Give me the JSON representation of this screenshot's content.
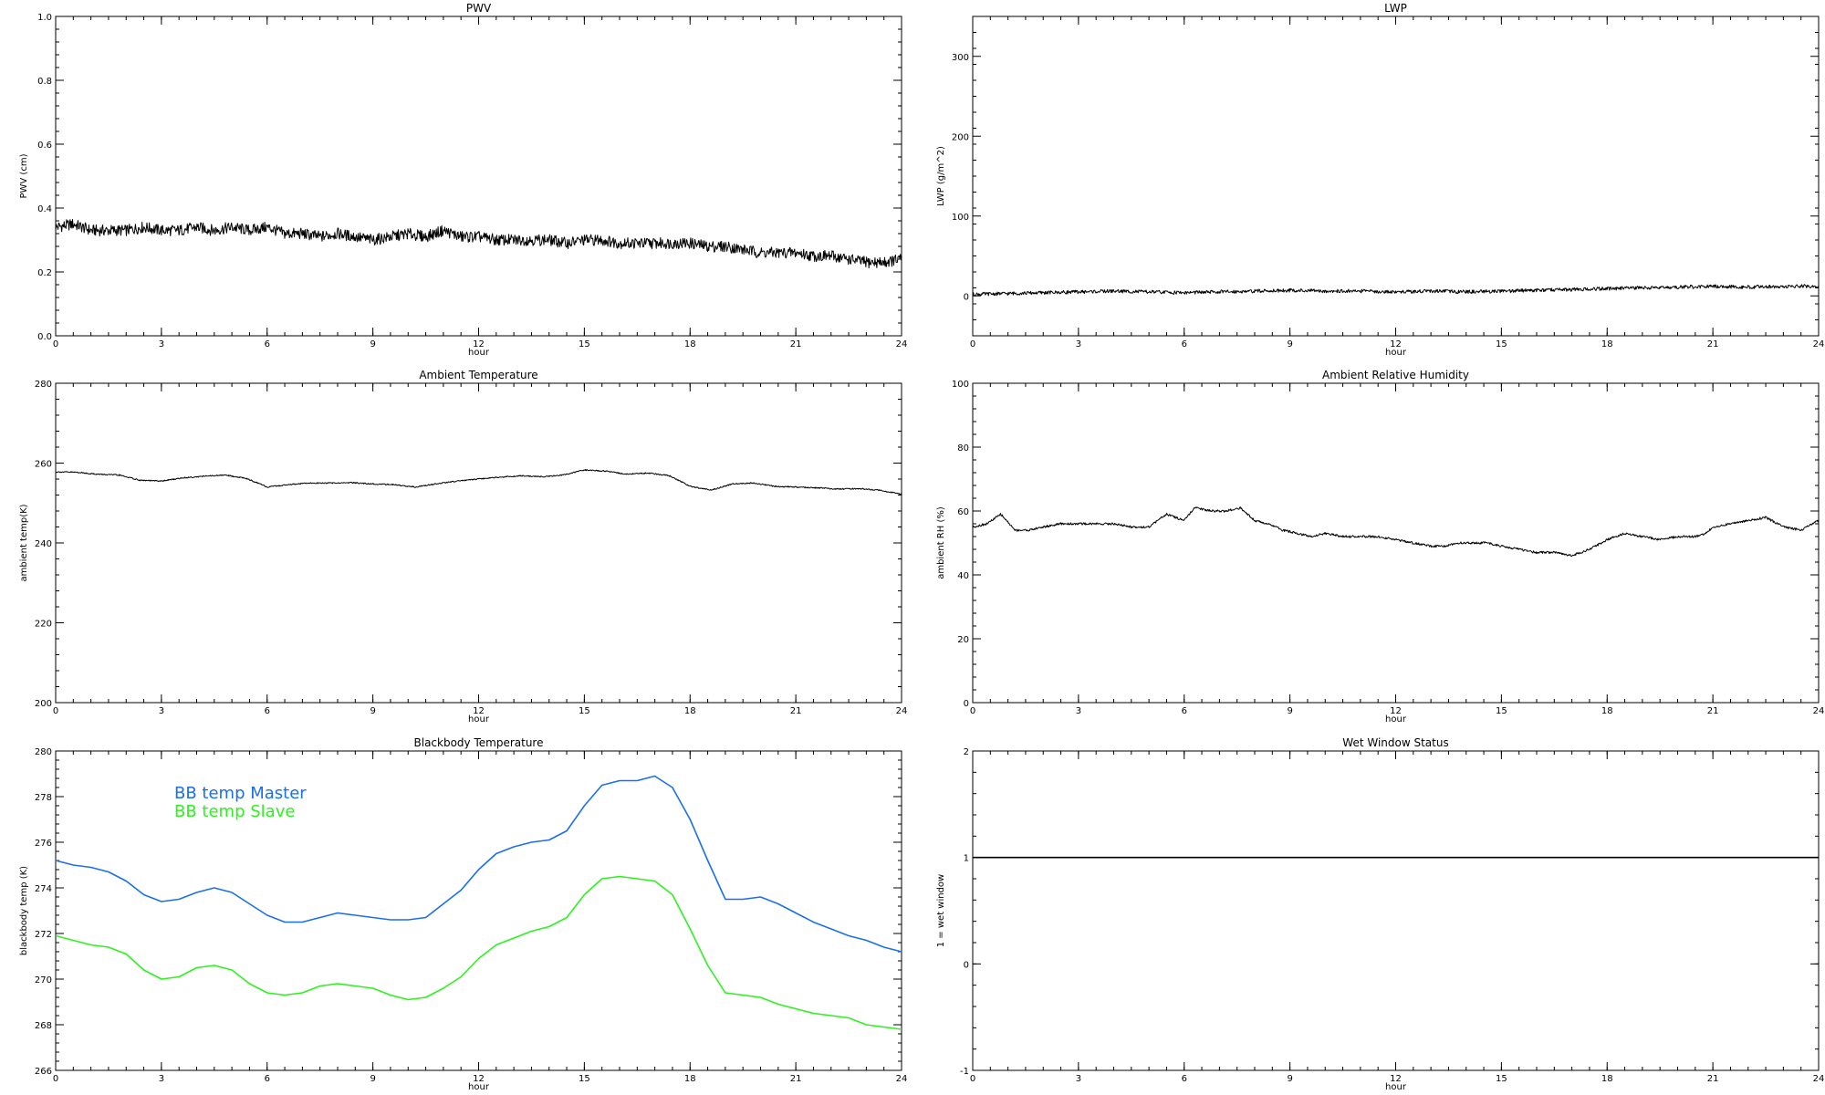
{
  "chart_data": [
    {
      "type": "line",
      "title": "PWV",
      "xlabel": "hour",
      "ylabel": "PWV (cm)",
      "xlim": [
        0,
        24
      ],
      "ylim": [
        0,
        1.0
      ],
      "xticks": [
        "0",
        "3",
        "6",
        "9",
        "12",
        "15",
        "18",
        "21",
        "24"
      ],
      "yticks": [
        "0.0",
        "0.2",
        "0.4",
        "0.6",
        "0.8",
        "1.0"
      ],
      "noise": 0.018,
      "series": [
        {
          "color": "#000000",
          "x": [
            0,
            0.5,
            1,
            1.5,
            2,
            2.5,
            3,
            3.5,
            4,
            4.5,
            5,
            5.5,
            6,
            6.5,
            7,
            7.5,
            8,
            8.5,
            9,
            9.5,
            10,
            10.5,
            11,
            11.5,
            12,
            12.5,
            13,
            13.5,
            14,
            14.5,
            15,
            15.5,
            16,
            16.5,
            17,
            17.5,
            18,
            18.5,
            19,
            19.5,
            20,
            20.5,
            21,
            21.5,
            22,
            22.5,
            23,
            23.5,
            24
          ],
          "y": [
            0.34,
            0.35,
            0.33,
            0.33,
            0.33,
            0.34,
            0.33,
            0.33,
            0.34,
            0.33,
            0.34,
            0.33,
            0.34,
            0.32,
            0.32,
            0.31,
            0.32,
            0.31,
            0.3,
            0.31,
            0.32,
            0.31,
            0.33,
            0.31,
            0.31,
            0.3,
            0.3,
            0.3,
            0.3,
            0.29,
            0.3,
            0.3,
            0.29,
            0.29,
            0.29,
            0.29,
            0.29,
            0.28,
            0.28,
            0.27,
            0.26,
            0.26,
            0.26,
            0.25,
            0.25,
            0.24,
            0.23,
            0.23,
            0.24
          ]
        }
      ]
    },
    {
      "type": "line",
      "title": "LWP",
      "xlabel": "hour",
      "ylabel": "LWP (g/m^2)",
      "xlim": [
        0,
        24
      ],
      "ylim": [
        -50,
        350
      ],
      "xticks": [
        "0",
        "3",
        "6",
        "9",
        "12",
        "15",
        "18",
        "21",
        "24"
      ],
      "yticks": [
        "0",
        "100",
        "200",
        "300"
      ],
      "ytick_values": [
        0,
        100,
        200,
        300
      ],
      "noise": 2.2,
      "series": [
        {
          "color": "#000000",
          "x": [
            0,
            1,
            2,
            3,
            4,
            5,
            6,
            7,
            8,
            9,
            10,
            11,
            12,
            13,
            14,
            15,
            16,
            17,
            18,
            19,
            20,
            21,
            22,
            23,
            24
          ],
          "y": [
            2,
            3,
            4,
            5,
            6,
            5,
            4,
            5,
            6,
            7,
            6,
            6,
            5,
            6,
            5,
            6,
            7,
            8,
            9,
            10,
            11,
            12,
            11,
            12,
            12
          ]
        }
      ]
    },
    {
      "type": "line",
      "title": "Ambient Temperature",
      "xlabel": "hour",
      "ylabel": "ambient temp(K)",
      "xlim": [
        0,
        24
      ],
      "ylim": [
        200,
        280
      ],
      "xticks": [
        "0",
        "3",
        "6",
        "9",
        "12",
        "15",
        "18",
        "21",
        "24"
      ],
      "yticks": [
        "200",
        "220",
        "240",
        "260",
        "280"
      ],
      "ytick_values": [
        200,
        220,
        240,
        260,
        280
      ],
      "noise": 0.15,
      "series": [
        {
          "color": "#000000",
          "x": [
            0,
            0.6,
            1.2,
            1.8,
            2.4,
            3,
            3.6,
            4.2,
            4.8,
            5.4,
            6,
            6.6,
            7.2,
            7.8,
            8.4,
            9,
            9.6,
            10.2,
            10.8,
            11.4,
            12,
            12.6,
            13.2,
            13.8,
            14.4,
            15,
            15.6,
            16.2,
            16.8,
            17.4,
            18,
            18.6,
            19.2,
            19.8,
            20.4,
            21,
            21.6,
            22.2,
            22.8,
            23.4,
            24
          ],
          "y": [
            257.8,
            257.7,
            257.2,
            257.0,
            255.7,
            255.5,
            256.3,
            256.7,
            257.0,
            256.2,
            254.0,
            254.6,
            255.0,
            255.0,
            255.1,
            254.8,
            254.6,
            254.0,
            254.8,
            255.5,
            256.0,
            256.5,
            256.8,
            256.6,
            257.0,
            258.3,
            258.0,
            257.2,
            257.5,
            256.9,
            254.2,
            253.2,
            254.8,
            255.0,
            254.2,
            254.0,
            253.8,
            253.5,
            253.6,
            253.2,
            252.2
          ]
        }
      ]
    },
    {
      "type": "line",
      "title": "Ambient Relative Humidity",
      "xlabel": "hour",
      "ylabel": "ambient RH (%)",
      "xlim": [
        0,
        24
      ],
      "ylim": [
        0,
        100
      ],
      "xticks": [
        "0",
        "3",
        "6",
        "9",
        "12",
        "15",
        "18",
        "21",
        "24"
      ],
      "yticks": [
        "0",
        "20",
        "40",
        "60",
        "80",
        "100"
      ],
      "ytick_values": [
        0,
        20,
        40,
        60,
        80,
        100
      ],
      "noise": 0.35,
      "series": [
        {
          "color": "#000000",
          "x": [
            0,
            0.4,
            0.8,
            1.2,
            1.6,
            2,
            2.5,
            3,
            3.5,
            4,
            4.5,
            5,
            5.5,
            6,
            6.3,
            6.8,
            7.2,
            7.6,
            8,
            8.4,
            8.8,
            9.2,
            9.6,
            10,
            10.5,
            11,
            11.5,
            12,
            12.5,
            13,
            13.4,
            13.8,
            14.2,
            14.6,
            15,
            15.5,
            16,
            16.5,
            17,
            17.5,
            18,
            18.5,
            19,
            19.5,
            20,
            20.5,
            20.8,
            21,
            21.5,
            22,
            22.5,
            23,
            23.5,
            24
          ],
          "y": [
            55,
            56,
            59,
            54,
            54,
            55,
            56,
            56,
            56,
            56,
            55,
            55,
            59,
            57,
            61,
            60,
            60,
            61,
            57,
            56,
            54,
            53,
            52,
            53,
            52,
            52,
            52,
            51,
            50,
            49,
            49,
            50,
            50,
            50,
            49,
            48,
            47,
            47,
            46,
            48,
            51,
            53,
            52,
            51,
            52,
            52,
            53,
            55,
            56,
            57,
            58,
            55,
            54,
            57
          ]
        }
      ]
    },
    {
      "type": "line",
      "title": "Blackbody Temperature",
      "xlabel": "hour",
      "ylabel": "blackbody temp (K)",
      "xlim": [
        0,
        24
      ],
      "ylim": [
        266,
        280
      ],
      "xticks": [
        "0",
        "3",
        "6",
        "9",
        "12",
        "15",
        "18",
        "21",
        "24"
      ],
      "yticks": [
        "266",
        "268",
        "270",
        "272",
        "274",
        "276",
        "278",
        "280"
      ],
      "ytick_values": [
        266,
        268,
        270,
        272,
        274,
        276,
        278,
        280
      ],
      "noise": 0,
      "legend_position": "top-left",
      "series": [
        {
          "name": "BB temp Master",
          "color": "#1a6ff0",
          "x": [
            0,
            0.5,
            1,
            1.5,
            2,
            2.5,
            3,
            3.5,
            4,
            4.5,
            5,
            5.5,
            6,
            6.5,
            7,
            7.5,
            8,
            8.5,
            9,
            9.5,
            10,
            10.5,
            11,
            11.5,
            12,
            12.5,
            13,
            13.5,
            14,
            14.5,
            15,
            15.5,
            16,
            16.5,
            17,
            17.5,
            18,
            18.5,
            19,
            19.5,
            20,
            20.5,
            21,
            21.5,
            22,
            22.5,
            23,
            23.5,
            24
          ],
          "y": [
            275.2,
            275.0,
            274.9,
            274.7,
            274.3,
            273.7,
            273.4,
            273.5,
            273.8,
            274.0,
            273.8,
            273.3,
            272.8,
            272.5,
            272.5,
            272.7,
            272.9,
            272.8,
            272.7,
            272.6,
            272.6,
            272.7,
            273.3,
            273.9,
            274.8,
            275.5,
            275.8,
            276.0,
            276.1,
            276.5,
            277.6,
            278.5,
            278.7,
            278.7,
            278.9,
            278.4,
            277.0,
            275.2,
            273.5,
            273.5,
            273.6,
            273.3,
            272.9,
            272.5,
            272.2,
            271.9,
            271.7,
            271.4,
            271.2
          ]
        },
        {
          "name": "BB temp Slave",
          "color": "#2ef21f",
          "x": [
            0,
            0.5,
            1,
            1.5,
            2,
            2.5,
            3,
            3.5,
            4,
            4.5,
            5,
            5.5,
            6,
            6.5,
            7,
            7.5,
            8,
            8.5,
            9,
            9.5,
            10,
            10.5,
            11,
            11.5,
            12,
            12.5,
            13,
            13.5,
            14,
            14.5,
            15,
            15.5,
            16,
            16.5,
            17,
            17.5,
            18,
            18.5,
            19,
            19.5,
            20,
            20.5,
            21,
            21.5,
            22,
            22.5,
            23,
            23.5,
            24
          ],
          "y": [
            271.9,
            271.7,
            271.5,
            271.4,
            271.1,
            270.4,
            270.0,
            270.1,
            270.5,
            270.6,
            270.4,
            269.8,
            269.4,
            269.3,
            269.4,
            269.7,
            269.8,
            269.7,
            269.6,
            269.3,
            269.1,
            269.2,
            269.6,
            270.1,
            270.9,
            271.5,
            271.8,
            272.1,
            272.3,
            272.7,
            273.7,
            274.4,
            274.5,
            274.4,
            274.3,
            273.7,
            272.2,
            270.6,
            269.4,
            269.3,
            269.2,
            268.9,
            268.7,
            268.5,
            268.4,
            268.3,
            268.0,
            267.9,
            267.8
          ]
        }
      ]
    },
    {
      "type": "line",
      "title": "Wet Window Status",
      "xlabel": "hour",
      "ylabel": "1 = wet window",
      "xlim": [
        0,
        24
      ],
      "ylim": [
        -1,
        2
      ],
      "xticks": [
        "0",
        "3",
        "6",
        "9",
        "12",
        "15",
        "18",
        "21",
        "24"
      ],
      "yticks": [
        "-1",
        "0",
        "1",
        "2"
      ],
      "ytick_values": [
        -1,
        0,
        1,
        2
      ],
      "noise": 0,
      "series": [
        {
          "color": "#000000",
          "x": [
            0,
            24
          ],
          "y": [
            1,
            1
          ]
        }
      ]
    }
  ]
}
